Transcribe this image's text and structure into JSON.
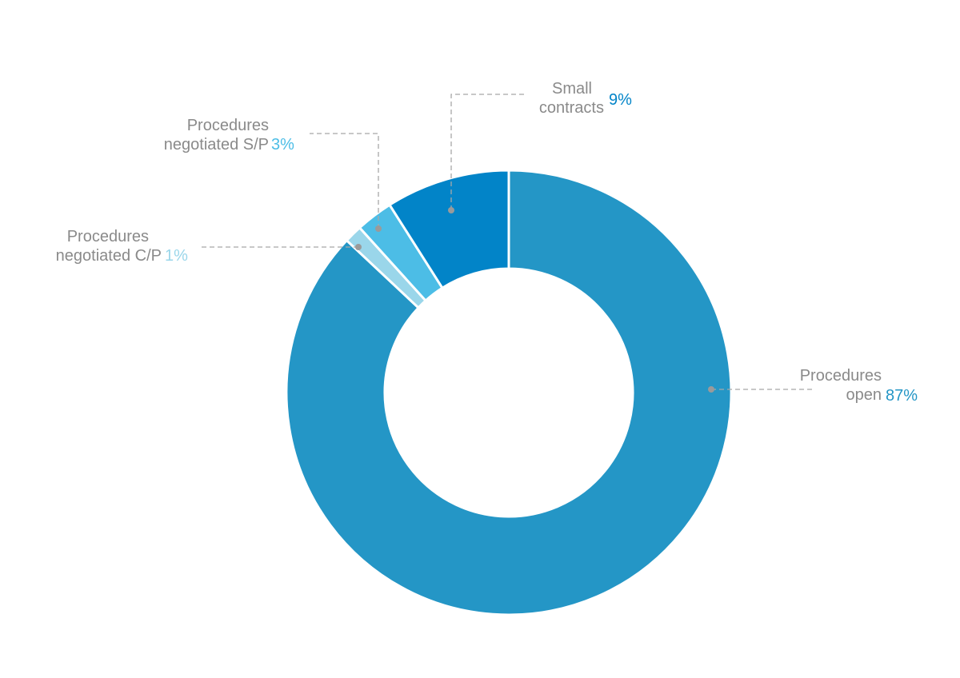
{
  "chart_data": {
    "type": "pie",
    "subtype": "donut",
    "slices": [
      {
        "line1": "Procedures",
        "line2": "open",
        "pct_label": "87%",
        "value": 87,
        "color": "#2496c6"
      },
      {
        "line1": "Procedures",
        "line2": "negotiated C/P",
        "pct_label": "1%",
        "value": 1.3,
        "color": "#9ad6ea"
      },
      {
        "line1": "Procedures",
        "line2": "negotiated S/P",
        "pct_label": "3%",
        "value": 2.7,
        "color": "#4cbde6"
      },
      {
        "line1": "Small",
        "line2": "contracts",
        "pct_label": "9%",
        "value": 9,
        "color": "#0284c8"
      }
    ],
    "legend": "callout labels",
    "grid": false
  }
}
